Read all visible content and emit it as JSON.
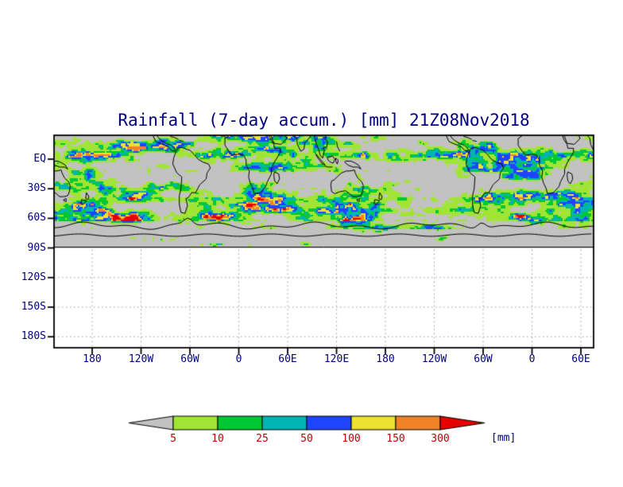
{
  "title": "Rainfall (7-day accum.) [mm] 21Z08Nov2018",
  "chart_data": {
    "type": "heatmap",
    "title": "Rainfall (7-day accum.) [mm] 21Z08Nov2018",
    "variable": "Rainfall",
    "accumulation_window": "7-day accum.",
    "valid_time_label": "21Z08Nov2018",
    "units": "mm",
    "projection_note": "global cylindrical lat-lon map, longitudes wrap nearly twice; shaded rainfall field ends at 90S, axis extends below with empty dotted grid",
    "basemap": "world coastlines drawn in black over the rainfall shading; area below 5 mm is gray",
    "x_axis": {
      "tick_labels": [
        "180",
        "120W",
        "60W",
        "0",
        "60E",
        "120E",
        "180",
        "120W",
        "60W",
        "0",
        "60E"
      ]
    },
    "y_axis": {
      "tick_labels": [
        "EQ",
        "30S",
        "60S",
        "90S",
        "120S",
        "150S",
        "180S"
      ]
    },
    "colorbar": {
      "levels": [
        "5",
        "10",
        "25",
        "50",
        "100",
        "150",
        "300"
      ],
      "units_label": "[mm]",
      "label_color": "#c00000",
      "colors": [
        "#c2c2c2",
        "#a2e436",
        "#00c832",
        "#00b4b4",
        "#1f44ff",
        "#ebe232",
        "#f08228",
        "#e60000"
      ]
    },
    "colors": {
      "page_background": "#ffffff",
      "map_background": "#c2c2c2",
      "coastline": "#000000",
      "frame": "#000000",
      "text": "#000080",
      "grid_dots": "#999999"
    },
    "rain_bands": [
      {
        "lat_from": 24.5,
        "lat_to": 13,
        "coverage": 0.48,
        "intensity": 0.62
      },
      {
        "lat_from": 13,
        "lat_to": 2,
        "coverage": 0.62,
        "intensity": 0.85
      },
      {
        "lat_from": 2,
        "lat_to": -13,
        "coverage": 0.5,
        "intensity": 0.6
      },
      {
        "lat_from": -13,
        "lat_to": -29,
        "coverage": 0.4,
        "intensity": 0.5
      },
      {
        "lat_from": -29,
        "lat_to": -38,
        "coverage": 0.55,
        "intensity": 0.68
      },
      {
        "lat_from": -38,
        "lat_to": -63,
        "coverage": 0.78,
        "intensity": 0.9
      },
      {
        "lat_from": -63,
        "lat_to": -71,
        "coverage": 0.42,
        "intensity": 0.45
      },
      {
        "lat_from": -71,
        "lat_to": -90,
        "coverage": 0.07,
        "intensity": 0.2
      }
    ]
  }
}
